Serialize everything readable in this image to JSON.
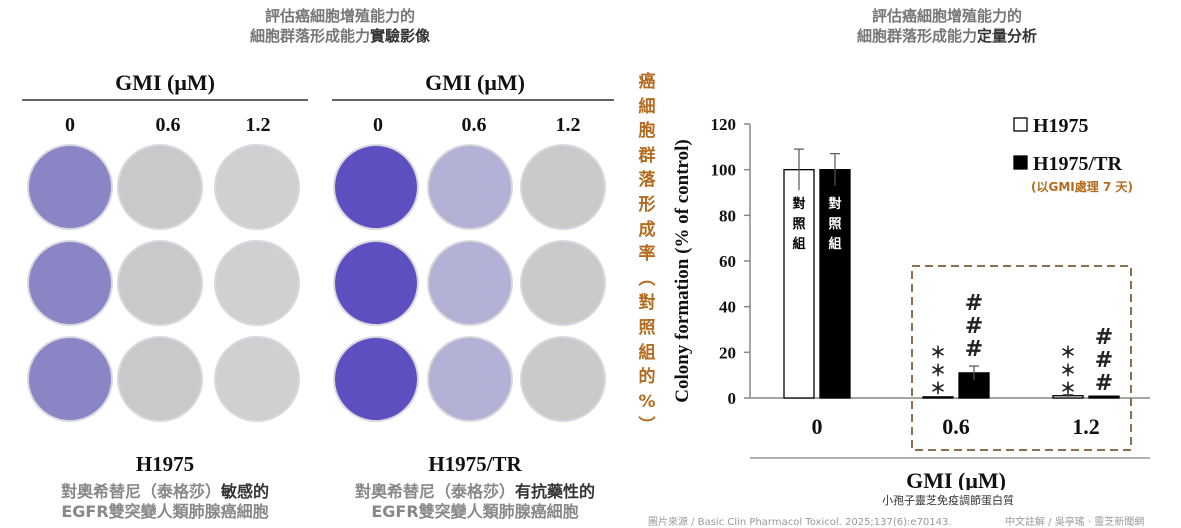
{
  "left_title": {
    "line1": "評估癌細胞增殖能力的",
    "line2_a": "細胞群落形成能力",
    "line2_b": "實驗影像"
  },
  "right_title": {
    "line1": "評估癌細胞增殖能力的",
    "line2_a": "細胞群落形成能力",
    "line2_b": "定量分析"
  },
  "panels": [
    {
      "header": "GMI (μM)",
      "doses": [
        "0",
        "0.6",
        "1.2"
      ],
      "cell_line": "H1975",
      "desc_a": "對奧希替尼（泰格莎）",
      "desc_b": "敏感的",
      "desc_c": "EGFR雙突變人類肺腺癌細胞"
    },
    {
      "header": "GMI (μM)",
      "doses": [
        "0",
        "0.6",
        "1.2"
      ],
      "cell_line": "H1975/TR",
      "desc_a": "對奧希替尼（泰格莎）",
      "desc_b": "有抗藥性的",
      "desc_c": "EGFR雙突變人類肺腺癌細胞"
    }
  ],
  "dish_colors": {
    "h1975": [
      "#8a86c6",
      "#c9c9cc",
      "#cfd0d1"
    ],
    "h1975tr": [
      "#5e4fc0",
      "#b4b1d6",
      "#c9cacc"
    ]
  },
  "y_label_zh": [
    "癌",
    "細",
    "胞",
    "群",
    "落",
    "形",
    "成",
    "率",
    "︵",
    "對",
    "照",
    "組",
    "的",
    "%",
    "︶"
  ],
  "control_label": [
    "對",
    "照",
    "組"
  ],
  "significance": {
    "stars": "＊\n＊\n＊",
    "hashes": "#\n#\n#"
  },
  "chart_data": {
    "type": "bar",
    "categories": [
      "0",
      "0.6",
      "1.2"
    ],
    "series": [
      {
        "name": "H1975",
        "values": [
          100,
          0.5,
          1
        ],
        "errors": [
          9,
          0,
          0.5
        ],
        "color": "#ffffff"
      },
      {
        "name": "H1975/TR",
        "values": [
          100,
          11,
          0.8
        ],
        "errors": [
          7,
          3,
          0
        ],
        "color": "#000000"
      }
    ],
    "ylabel": "Colony formation (% of control)",
    "xlabel": "GMI (μM)",
    "yticks": [
      0,
      20,
      40,
      60,
      80,
      100,
      120
    ],
    "ylim": [
      0,
      120
    ],
    "legend_note": "(以GMI處理 7 天)"
  },
  "chart_caption": "小孢子靈芝免疫調節蛋白質",
  "source_left": "圖片來源 / Basic Clin Pharmacol Toxicol. 2025;137(6):e70143.",
  "source_right": "中文註解 / 吳亭瑤 · 靈芝新聞網"
}
